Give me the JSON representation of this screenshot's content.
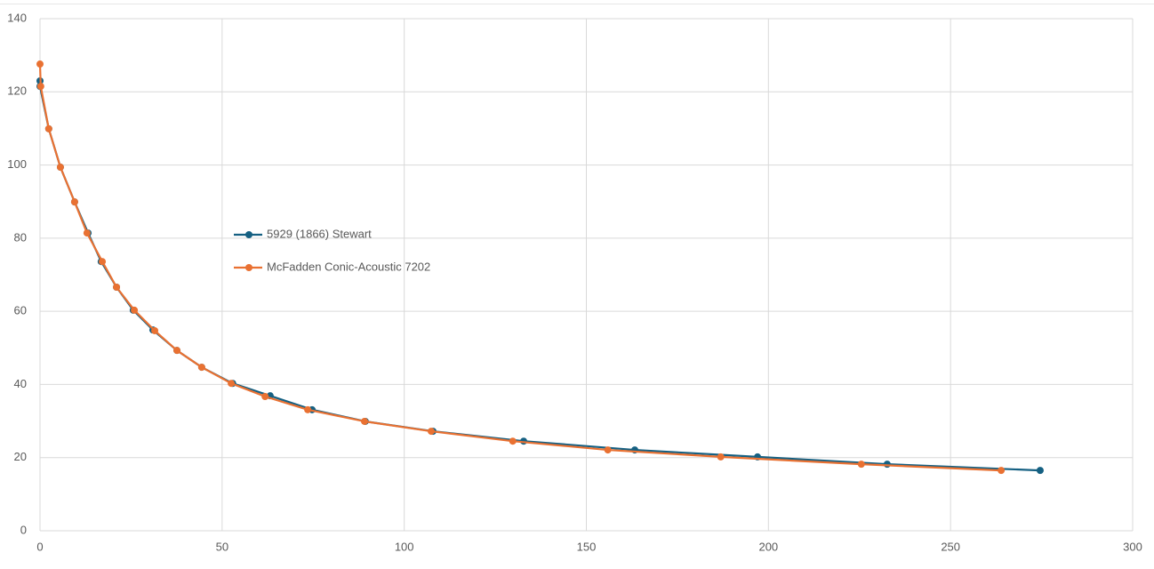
{
  "chart_data": {
    "type": "scatter-line",
    "xlim": [
      0,
      300
    ],
    "xticks": [
      0,
      50,
      100,
      150,
      200,
      250,
      300
    ],
    "ylim": [
      0,
      140
    ],
    "yticks": [
      0,
      20,
      40,
      60,
      80,
      100,
      120,
      140
    ],
    "grid": true,
    "legend": "center-left",
    "series": [
      {
        "name": "5929 (1866) Stewart",
        "color": "#156082",
        "x": [
          0,
          0,
          2.4,
          5.6,
          9.5,
          13.2,
          16.8,
          21,
          25.6,
          31,
          37.6,
          44.4,
          52.9,
          63.2,
          74.7,
          89.3,
          107.9,
          132.8,
          163.3,
          197,
          232.6,
          274.6
        ],
        "y": [
          123.0,
          121.5,
          109.9,
          99.4,
          89.9,
          81.4,
          73.6,
          66.6,
          60.3,
          54.9,
          49.3,
          44.7,
          40.3,
          36.9,
          33.1,
          29.9,
          27.2,
          24.5,
          22.1,
          20.2,
          18.2,
          16.5
        ]
      },
      {
        "name": "McFadden Conic-Acoustic 7202",
        "color": "#e97132",
        "x": [
          0,
          0.2,
          2.4,
          5.6,
          9.5,
          12.9,
          17.1,
          21,
          25.9,
          31.5,
          37.6,
          44.4,
          52.5,
          61.8,
          73.5,
          89.1,
          107.4,
          129.8,
          155.9,
          186.9,
          225.5,
          263.9
        ],
        "y": [
          127.6,
          121.5,
          109.9,
          99.4,
          89.9,
          81.4,
          73.6,
          66.6,
          60.3,
          54.7,
          49.3,
          44.7,
          40.3,
          36.7,
          33.1,
          29.9,
          27.2,
          24.5,
          22.1,
          20.2,
          18.2,
          16.5
        ]
      }
    ]
  }
}
